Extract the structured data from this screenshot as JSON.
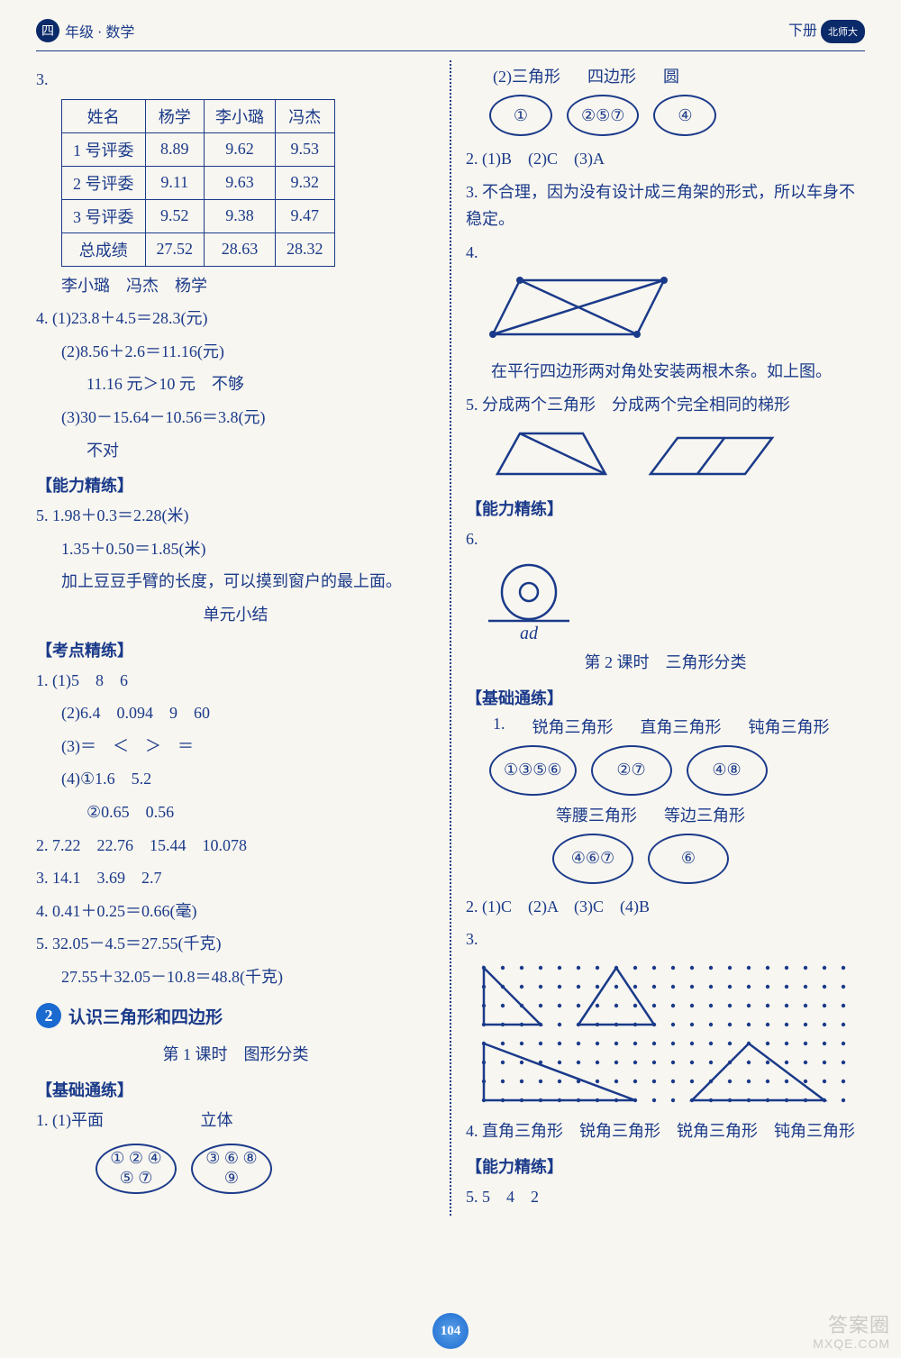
{
  "header": {
    "grade_badge": "四",
    "grade_subject": "年级 · 数学",
    "right_label": "下册"
  },
  "left": {
    "q3": {
      "num": "3.",
      "table": {
        "headers": [
          "姓名",
          "杨学",
          "李小璐",
          "冯杰"
        ],
        "rows": [
          [
            "1 号评委",
            "8.89",
            "9.62",
            "9.53"
          ],
          [
            "2 号评委",
            "9.11",
            "9.63",
            "9.32"
          ],
          [
            "3 号评委",
            "9.52",
            "9.38",
            "9.47"
          ],
          [
            "总成绩",
            "27.52",
            "28.63",
            "28.32"
          ]
        ]
      },
      "rank": "李小璐　冯杰　杨学"
    },
    "q4": {
      "num": "4.",
      "p1": "(1)23.8＋4.5＝28.3(元)",
      "p2": "(2)8.56＋2.6＝11.16(元)",
      "p2b": "11.16 元＞10 元　不够",
      "p3": "(3)30－15.64－10.56＝3.8(元)",
      "p3b": "不对"
    },
    "sec_ability": "【能力精练】",
    "q5": {
      "num": "5.",
      "l1": "1.98＋0.3＝2.28(米)",
      "l2": "1.35＋0.50＝1.85(米)",
      "l3": "加上豆豆手臂的长度，可以摸到窗户的最上面。"
    },
    "unit_summary": "单元小结",
    "sec_exam": "【考点精练】",
    "e1": {
      "num": "1.",
      "p1": "(1)5　8　6",
      "p2": "(2)6.4　0.094　9　60",
      "p3": "(3)＝　＜　＞　＝",
      "p4": "(4)①1.6　5.2",
      "p4b": "②0.65　0.56"
    },
    "e2": "2. 7.22　22.76　15.44　10.078",
    "e3": "3. 14.1　3.69　2.7",
    "e4": "4. 0.41＋0.25＝0.66(毫)",
    "e5a": "5. 32.05－4.5＝27.55(千克)",
    "e5b": "27.55＋32.05－10.8＝48.8(千克)",
    "chapter": {
      "num": "2",
      "title": "认识三角形和四边形"
    },
    "lesson1": "第 1 课时　图形分类",
    "sec_basic": "【基础通练】",
    "b1": {
      "num": "1.",
      "p1_left": "(1)平面",
      "p1_right": "立体",
      "ov1": "① ② ④\n⑤ ⑦",
      "ov2": "③ ⑥ ⑧\n⑨"
    }
  },
  "right": {
    "b1p2": {
      "label": "(2)三角形",
      "label2": "四边形",
      "label3": "圆",
      "ov1": "①",
      "ov2": "②⑤⑦",
      "ov3": "④"
    },
    "q2": "2. (1)B　(2)C　(3)A",
    "q3": "3. 不合理，因为没有设计成三角架的形式，所以车身不稳定。",
    "q4num": "4.",
    "q4text": "在平行四边形两对角处安装两根木条。如上图。",
    "q5": "5. 分成两个三角形　分成两个完全相同的梯形",
    "sec_ability": "【能力精练】",
    "q6num": "6.",
    "q6label": "ad",
    "lesson2": "第 2 课时　三角形分类",
    "sec_basic": "【基础通练】",
    "t1": {
      "num": "1.",
      "h1": "锐角三角形",
      "h2": "直角三角形",
      "h3": "钝角三角形",
      "ov1": "①③⑤⑥",
      "ov2": "②⑦",
      "ov3": "④⑧",
      "h4": "等腰三角形",
      "h5": "等边三角形",
      "ov4": "④⑥⑦",
      "ov5": "⑥"
    },
    "t2": "2. (1)C　(2)A　(3)C　(4)B",
    "t3num": "3.",
    "t4": "4. 直角三角形　锐角三角形　锐角三角形　钝角三角形",
    "sec_ability2": "【能力精练】",
    "t5": "5. 5　4　2"
  },
  "page_num": "104",
  "watermark": {
    "l1": "答案圈",
    "l2": "MXQE.COM"
  },
  "colors": {
    "ink": "#1a3a8a",
    "accent": "#1a6ad0",
    "bg": "#f8f6f0"
  }
}
